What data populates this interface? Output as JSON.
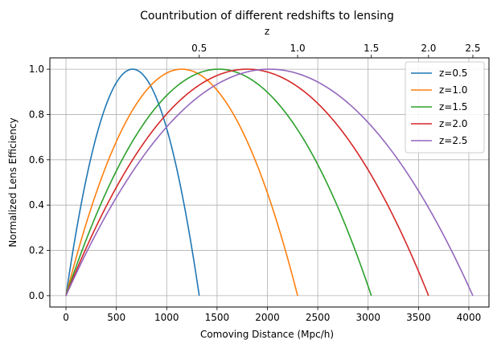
{
  "chart_data": {
    "type": "line",
    "title": "Countribution of different redshifts to lensing",
    "xlabel": "Comoving Distance (Mpc/h)",
    "ylabel": "Normalized Lens Efficiency",
    "top_xlabel": "z",
    "xlim": [
      -160,
      4200
    ],
    "ylim": [
      -0.05,
      1.05
    ],
    "xticks": [
      0,
      500,
      1000,
      1500,
      2000,
      2500,
      3000,
      3500,
      4000
    ],
    "yticks": [
      0.0,
      0.2,
      0.4,
      0.6,
      0.8,
      1.0
    ],
    "top_ticks": [
      {
        "label": "0.5",
        "x": 1323
      },
      {
        "label": "1.0",
        "x": 2300
      },
      {
        "label": "1.5",
        "x": 3032
      },
      {
        "label": "2.0",
        "x": 3600
      },
      {
        "label": "2.5",
        "x": 4040
      }
    ],
    "grid": true,
    "legend_position": "top-right",
    "series": [
      {
        "name": "z=0.5",
        "source_distance": 1323,
        "color": "#1f77b4"
      },
      {
        "name": "z=1.0",
        "source_distance": 2300,
        "color": "#ff7f0e"
      },
      {
        "name": "z=1.5",
        "source_distance": 3032,
        "color": "#2ca02c"
      },
      {
        "name": "z=2.0",
        "source_distance": 3600,
        "color": "#d62728"
      },
      {
        "name": "z=2.5",
        "source_distance": 4040,
        "color": "#9467bd"
      }
    ]
  }
}
